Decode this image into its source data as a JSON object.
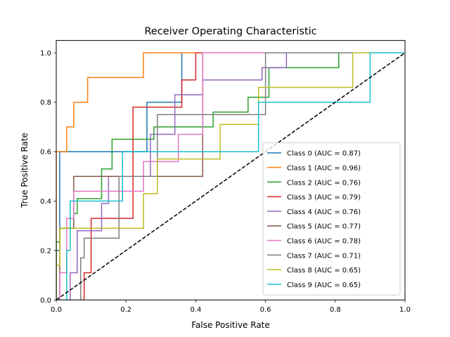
{
  "chart_data": {
    "type": "line",
    "title": "Receiver Operating Characteristic",
    "xlabel": "False Positive Rate",
    "ylabel": "True Positive Rate",
    "xlim": [
      0.0,
      1.0
    ],
    "ylim": [
      0.0,
      1.05
    ],
    "x_ticks": [
      "0.0",
      "0.2",
      "0.4",
      "0.6",
      "0.8",
      "1.0"
    ],
    "y_ticks": [
      "0.0",
      "0.2",
      "0.4",
      "0.6",
      "0.8",
      "1.0"
    ],
    "x_tick_values": [
      0.0,
      0.2,
      0.4,
      0.6,
      0.8,
      1.0
    ],
    "y_tick_values": [
      0.0,
      0.2,
      0.4,
      0.6,
      0.8,
      1.0
    ],
    "grid": false,
    "legend_position": "lower-right",
    "reference_line": {
      "points": [
        [
          0,
          0
        ],
        [
          1,
          1
        ]
      ],
      "color": "#000000",
      "style": "dashed"
    },
    "series": [
      {
        "name": "Class 0 (AUC = 0.87)",
        "color": "#1f77b4",
        "points": [
          [
            0,
            0
          ],
          [
            0,
            0.2
          ],
          [
            0.01,
            0.2
          ],
          [
            0.01,
            0.6
          ],
          [
            0.26,
            0.6
          ],
          [
            0.26,
            0.8
          ],
          [
            0.36,
            0.8
          ],
          [
            0.36,
            1.0
          ],
          [
            1,
            1
          ]
        ]
      },
      {
        "name": "Class 1 (AUC = 0.96)",
        "color": "#ff7f0e",
        "points": [
          [
            0,
            0
          ],
          [
            0,
            0.6
          ],
          [
            0.03,
            0.6
          ],
          [
            0.03,
            0.7
          ],
          [
            0.05,
            0.7
          ],
          [
            0.05,
            0.8
          ],
          [
            0.09,
            0.8
          ],
          [
            0.09,
            0.9
          ],
          [
            0.25,
            0.9
          ],
          [
            0.25,
            1.0
          ],
          [
            1,
            1
          ]
        ]
      },
      {
        "name": "Class 2 (AUC = 0.76)",
        "color": "#2ca02c",
        "points": [
          [
            0,
            0
          ],
          [
            0,
            0.235
          ],
          [
            0.01,
            0.235
          ],
          [
            0.01,
            0.29
          ],
          [
            0.05,
            0.29
          ],
          [
            0.05,
            0.35
          ],
          [
            0.06,
            0.35
          ],
          [
            0.06,
            0.41
          ],
          [
            0.13,
            0.41
          ],
          [
            0.13,
            0.53
          ],
          [
            0.16,
            0.53
          ],
          [
            0.16,
            0.65
          ],
          [
            0.28,
            0.65
          ],
          [
            0.28,
            0.7
          ],
          [
            0.45,
            0.7
          ],
          [
            0.45,
            0.76
          ],
          [
            0.55,
            0.76
          ],
          [
            0.55,
            0.82
          ],
          [
            0.61,
            0.82
          ],
          [
            0.61,
            0.94
          ],
          [
            0.81,
            0.94
          ],
          [
            0.81,
            1.0
          ],
          [
            1,
            1
          ]
        ]
      },
      {
        "name": "Class 3 (AUC = 0.79)",
        "color": "#d62728",
        "points": [
          [
            0,
            0
          ],
          [
            0.08,
            0
          ],
          [
            0.08,
            0.11
          ],
          [
            0.1,
            0.11
          ],
          [
            0.1,
            0.33
          ],
          [
            0.22,
            0.33
          ],
          [
            0.22,
            0.78
          ],
          [
            0.36,
            0.78
          ],
          [
            0.36,
            0.89
          ],
          [
            0.4,
            0.89
          ],
          [
            0.4,
            1.0
          ],
          [
            1,
            1
          ]
        ]
      },
      {
        "name": "Class 4 (AUC = 0.76)",
        "color": "#9467bd",
        "points": [
          [
            0,
            0
          ],
          [
            0.04,
            0
          ],
          [
            0.04,
            0.11
          ],
          [
            0.06,
            0.11
          ],
          [
            0.06,
            0.28
          ],
          [
            0.13,
            0.28
          ],
          [
            0.13,
            0.39
          ],
          [
            0.15,
            0.39
          ],
          [
            0.15,
            0.5
          ],
          [
            0.27,
            0.5
          ],
          [
            0.27,
            0.67
          ],
          [
            0.34,
            0.67
          ],
          [
            0.34,
            0.83
          ],
          [
            0.42,
            0.83
          ],
          [
            0.42,
            0.89
          ],
          [
            0.59,
            0.89
          ],
          [
            0.59,
            0.94
          ],
          [
            0.66,
            0.94
          ],
          [
            0.66,
            1.0
          ],
          [
            1,
            1
          ]
        ]
      },
      {
        "name": "Class 5 (AUC = 0.77)",
        "color": "#8c564b",
        "points": [
          [
            0,
            0
          ],
          [
            0.01,
            0
          ],
          [
            0.01,
            0.29
          ],
          [
            0.05,
            0.29
          ],
          [
            0.05,
            0.5
          ],
          [
            0.42,
            0.5
          ],
          [
            0.42,
            1.0
          ],
          [
            1,
            1
          ]
        ]
      },
      {
        "name": "Class 6 (AUC = 0.78)",
        "color": "#e377c2",
        "points": [
          [
            0,
            0
          ],
          [
            0.01,
            0
          ],
          [
            0.01,
            0.11
          ],
          [
            0.03,
            0.11
          ],
          [
            0.03,
            0.33
          ],
          [
            0.05,
            0.33
          ],
          [
            0.05,
            0.44
          ],
          [
            0.25,
            0.44
          ],
          [
            0.25,
            0.56
          ],
          [
            0.35,
            0.56
          ],
          [
            0.35,
            0.67
          ],
          [
            0.42,
            0.67
          ],
          [
            0.42,
            1.0
          ],
          [
            1,
            1
          ]
        ]
      },
      {
        "name": "Class 7 (AUC = 0.71)",
        "color": "#7f7f7f",
        "points": [
          [
            0,
            0
          ],
          [
            0.07,
            0
          ],
          [
            0.07,
            0.17
          ],
          [
            0.08,
            0.17
          ],
          [
            0.08,
            0.25
          ],
          [
            0.18,
            0.25
          ],
          [
            0.18,
            0.5
          ],
          [
            0.29,
            0.5
          ],
          [
            0.29,
            0.75
          ],
          [
            0.6,
            0.75
          ],
          [
            0.6,
            1.0
          ],
          [
            1,
            1
          ]
        ]
      },
      {
        "name": "Class 8 (AUC = 0.65)",
        "color": "#bcbd22",
        "points": [
          [
            0,
            0
          ],
          [
            0,
            0.14
          ],
          [
            0.01,
            0.14
          ],
          [
            0.01,
            0.29
          ],
          [
            0.25,
            0.29
          ],
          [
            0.25,
            0.43
          ],
          [
            0.29,
            0.43
          ],
          [
            0.29,
            0.57
          ],
          [
            0.47,
            0.57
          ],
          [
            0.47,
            0.71
          ],
          [
            0.58,
            0.71
          ],
          [
            0.58,
            0.86
          ],
          [
            0.85,
            0.86
          ],
          [
            0.85,
            1.0
          ],
          [
            1,
            1
          ]
        ]
      },
      {
        "name": "Class 9 (AUC = 0.65)",
        "color": "#17becf",
        "points": [
          [
            0,
            0
          ],
          [
            0.03,
            0
          ],
          [
            0.03,
            0.2
          ],
          [
            0.04,
            0.2
          ],
          [
            0.04,
            0.4
          ],
          [
            0.19,
            0.4
          ],
          [
            0.19,
            0.6
          ],
          [
            0.58,
            0.6
          ],
          [
            0.58,
            0.8
          ],
          [
            0.9,
            0.8
          ],
          [
            0.9,
            1.0
          ],
          [
            1,
            1
          ]
        ]
      }
    ]
  }
}
